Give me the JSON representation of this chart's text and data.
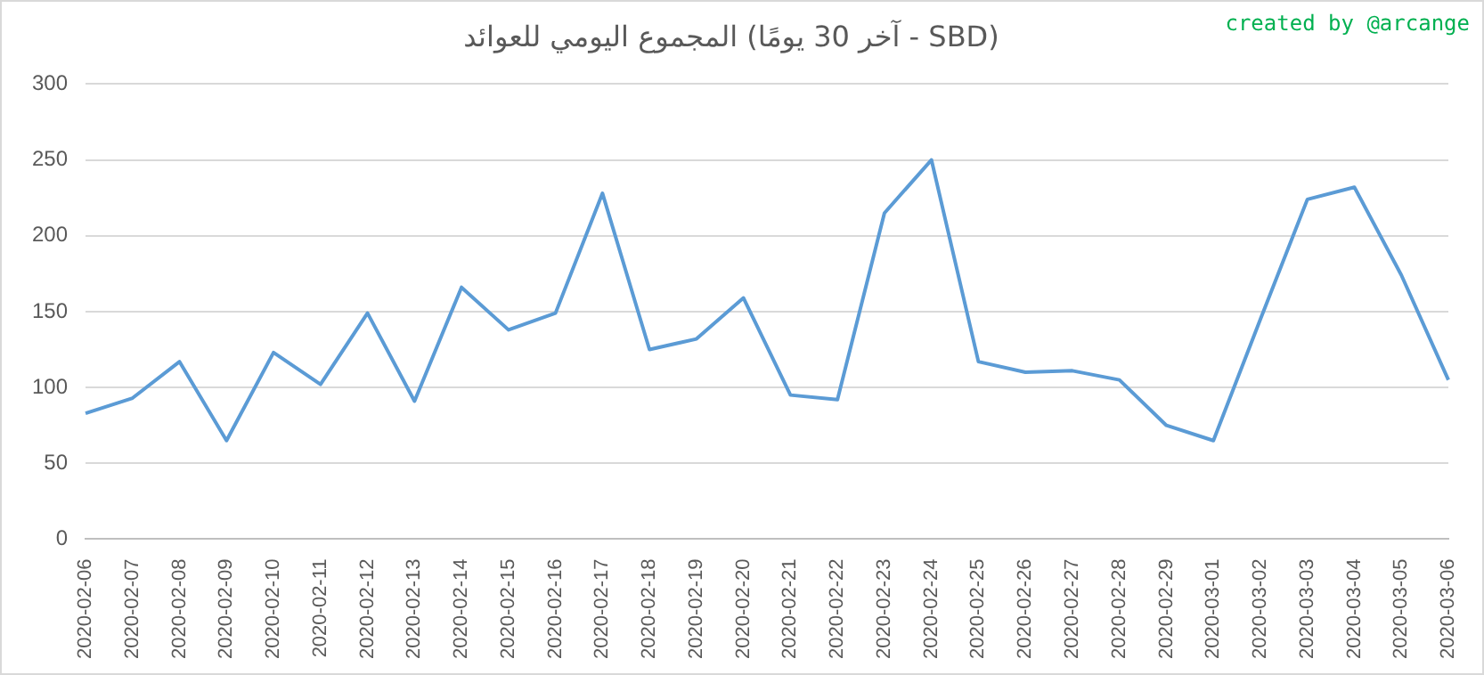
{
  "chart_data": {
    "type": "line",
    "title": "المجموع اليومي للعوائد (آخر 30 يومًا - SBD)",
    "annotations": [
      "created by @arcange"
    ],
    "categories": [
      "2020-02-06",
      "2020-02-07",
      "2020-02-08",
      "2020-02-09",
      "2020-02-10",
      "2020-02-11",
      "2020-02-12",
      "2020-02-13",
      "2020-02-14",
      "2020-02-15",
      "2020-02-16",
      "2020-02-17",
      "2020-02-18",
      "2020-02-19",
      "2020-02-20",
      "2020-02-21",
      "2020-02-22",
      "2020-02-23",
      "2020-02-24",
      "2020-02-25",
      "2020-02-26",
      "2020-02-27",
      "2020-02-28",
      "2020-02-29",
      "2020-03-01",
      "2020-03-02",
      "2020-03-03",
      "2020-03-04",
      "2020-03-05",
      "2020-03-06"
    ],
    "series": [
      {
        "color": "#5b9bd5",
        "values": [
          83,
          93,
          117,
          65,
          123,
          102,
          149,
          91,
          166,
          138,
          149,
          228,
          125,
          132,
          159,
          95,
          92,
          215,
          250,
          117,
          110,
          111,
          105,
          75,
          65,
          145,
          224,
          232,
          174,
          105
        ]
      }
    ],
    "ylim": [
      0,
      300
    ],
    "yticks": [
      0,
      50,
      100,
      150,
      200,
      250,
      300
    ],
    "grid": "y",
    "legend": false,
    "marker": "none",
    "line_style": "solid"
  }
}
